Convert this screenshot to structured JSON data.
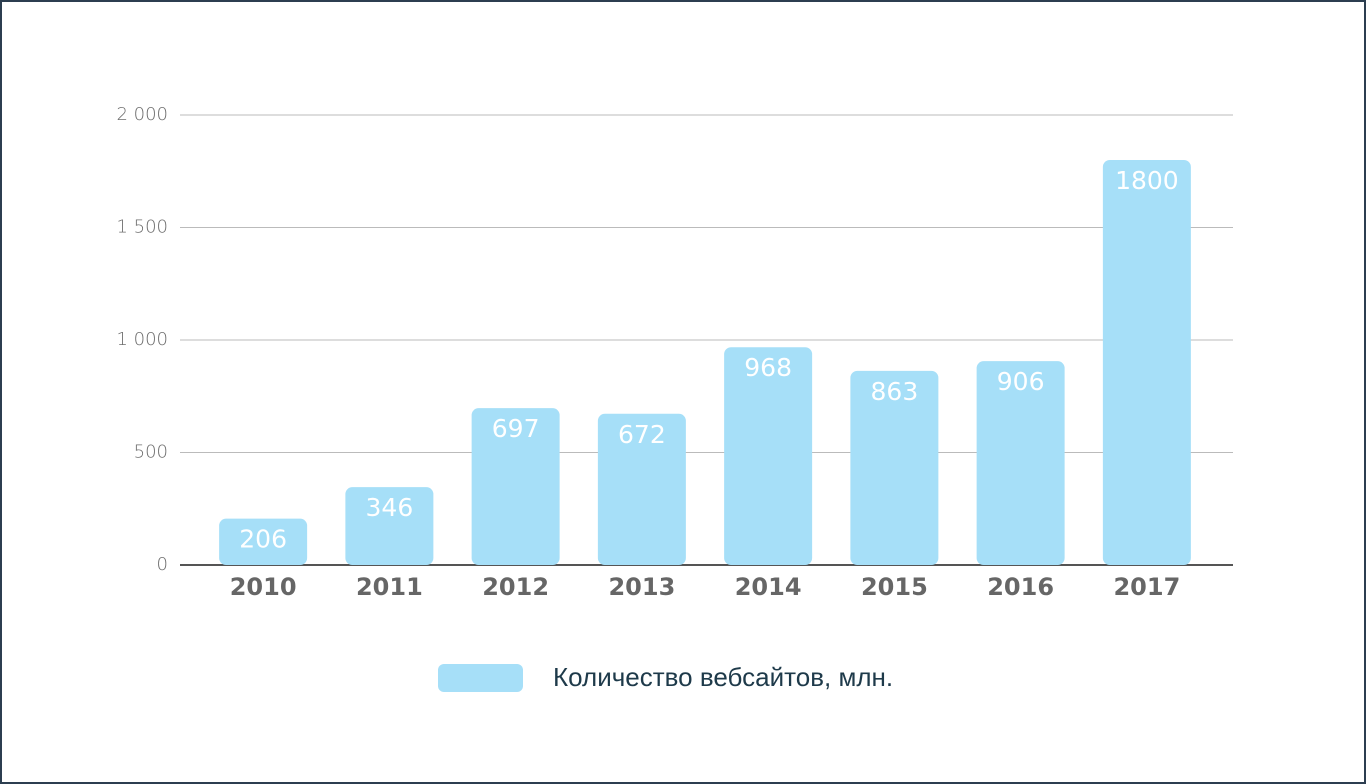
{
  "chart_data": {
    "type": "bar",
    "categories": [
      "2010",
      "2011",
      "2012",
      "2013",
      "2014",
      "2015",
      "2016",
      "2017"
    ],
    "series": [
      {
        "name": "Количество вебсайтов, млн.",
        "color": "#a6dff8",
        "values": [
          206,
          346,
          697,
          672,
          968,
          863,
          906,
          1800
        ]
      }
    ],
    "ylim": [
      0,
      2000
    ],
    "yticks": [
      0,
      500,
      {
        "value": 1000,
        "label": "1 000"
      },
      {
        "value": 1500,
        "label": "1 500"
      },
      {
        "value": 2000,
        "label": "2 000"
      }
    ],
    "grid": true
  }
}
